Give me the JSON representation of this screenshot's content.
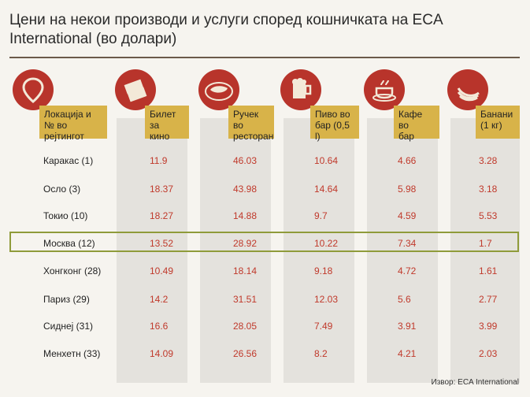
{
  "title": "Цени на некои производи и услуги според кошничката на ECA International (во долари)",
  "colors": {
    "accent_red": "#b8342b",
    "header_gold": "#d8b349",
    "value_red": "#c0392b",
    "highlight": "#8f9b3a"
  },
  "icons": [
    "location-pin-icon",
    "cinema-ticket-icon",
    "steak-plate-icon",
    "beer-mug-icon",
    "coffee-cup-icon",
    "bananas-icon"
  ],
  "headers": [
    "Локација и\n№ во рејтингот",
    "Билет за\nкино",
    "Ручек во\nресторан",
    "Пиво во\nбар (0,5 l)",
    "Кафе во\nбар",
    "Банани\n(1 кг)"
  ],
  "header_lines": [
    [
      "Локација и",
      "№ во рејтингот"
    ],
    [
      "Билет за",
      "кино"
    ],
    [
      "Ручек во",
      "ресторан"
    ],
    [
      "Пиво во",
      "бар (0,5 l)"
    ],
    [
      "Кафе во",
      "бар"
    ],
    [
      "Банани",
      "(1 кг)"
    ]
  ],
  "rows": [
    {
      "label": "Каракас (1)",
      "values": [
        "11.9",
        "46.03",
        "10.64",
        "4.66",
        "3.28"
      ]
    },
    {
      "label": "Осло (3)",
      "values": [
        "18.37",
        "43.98",
        "14.64",
        "5.98",
        "3.18"
      ]
    },
    {
      "label": "Токио (10)",
      "values": [
        "18.27",
        "14.88",
        "9.7",
        "4.59",
        "5.53"
      ]
    },
    {
      "label": "Москва (12)",
      "values": [
        "13.52",
        "28.92",
        "10.22",
        "7.34",
        "1.7"
      ]
    },
    {
      "label": "Хонгконг (28)",
      "values": [
        "10.49",
        "18.14",
        "9.18",
        "4.72",
        "1.61"
      ]
    },
    {
      "label": "Париз (29)",
      "values": [
        "14.2",
        "31.51",
        "12.03",
        "5.6",
        "2.77"
      ]
    },
    {
      "label": "Сиднеј (31)",
      "values": [
        "16.6",
        "28.05",
        "7.49",
        "3.91",
        "3.99"
      ]
    },
    {
      "label": "Менхетн (33)",
      "values": [
        "14.09",
        "26.56",
        "8.2",
        "4.21",
        "2.03"
      ]
    }
  ],
  "highlighted_row": "Москва (12)",
  "source": "Извор: ECA International"
}
